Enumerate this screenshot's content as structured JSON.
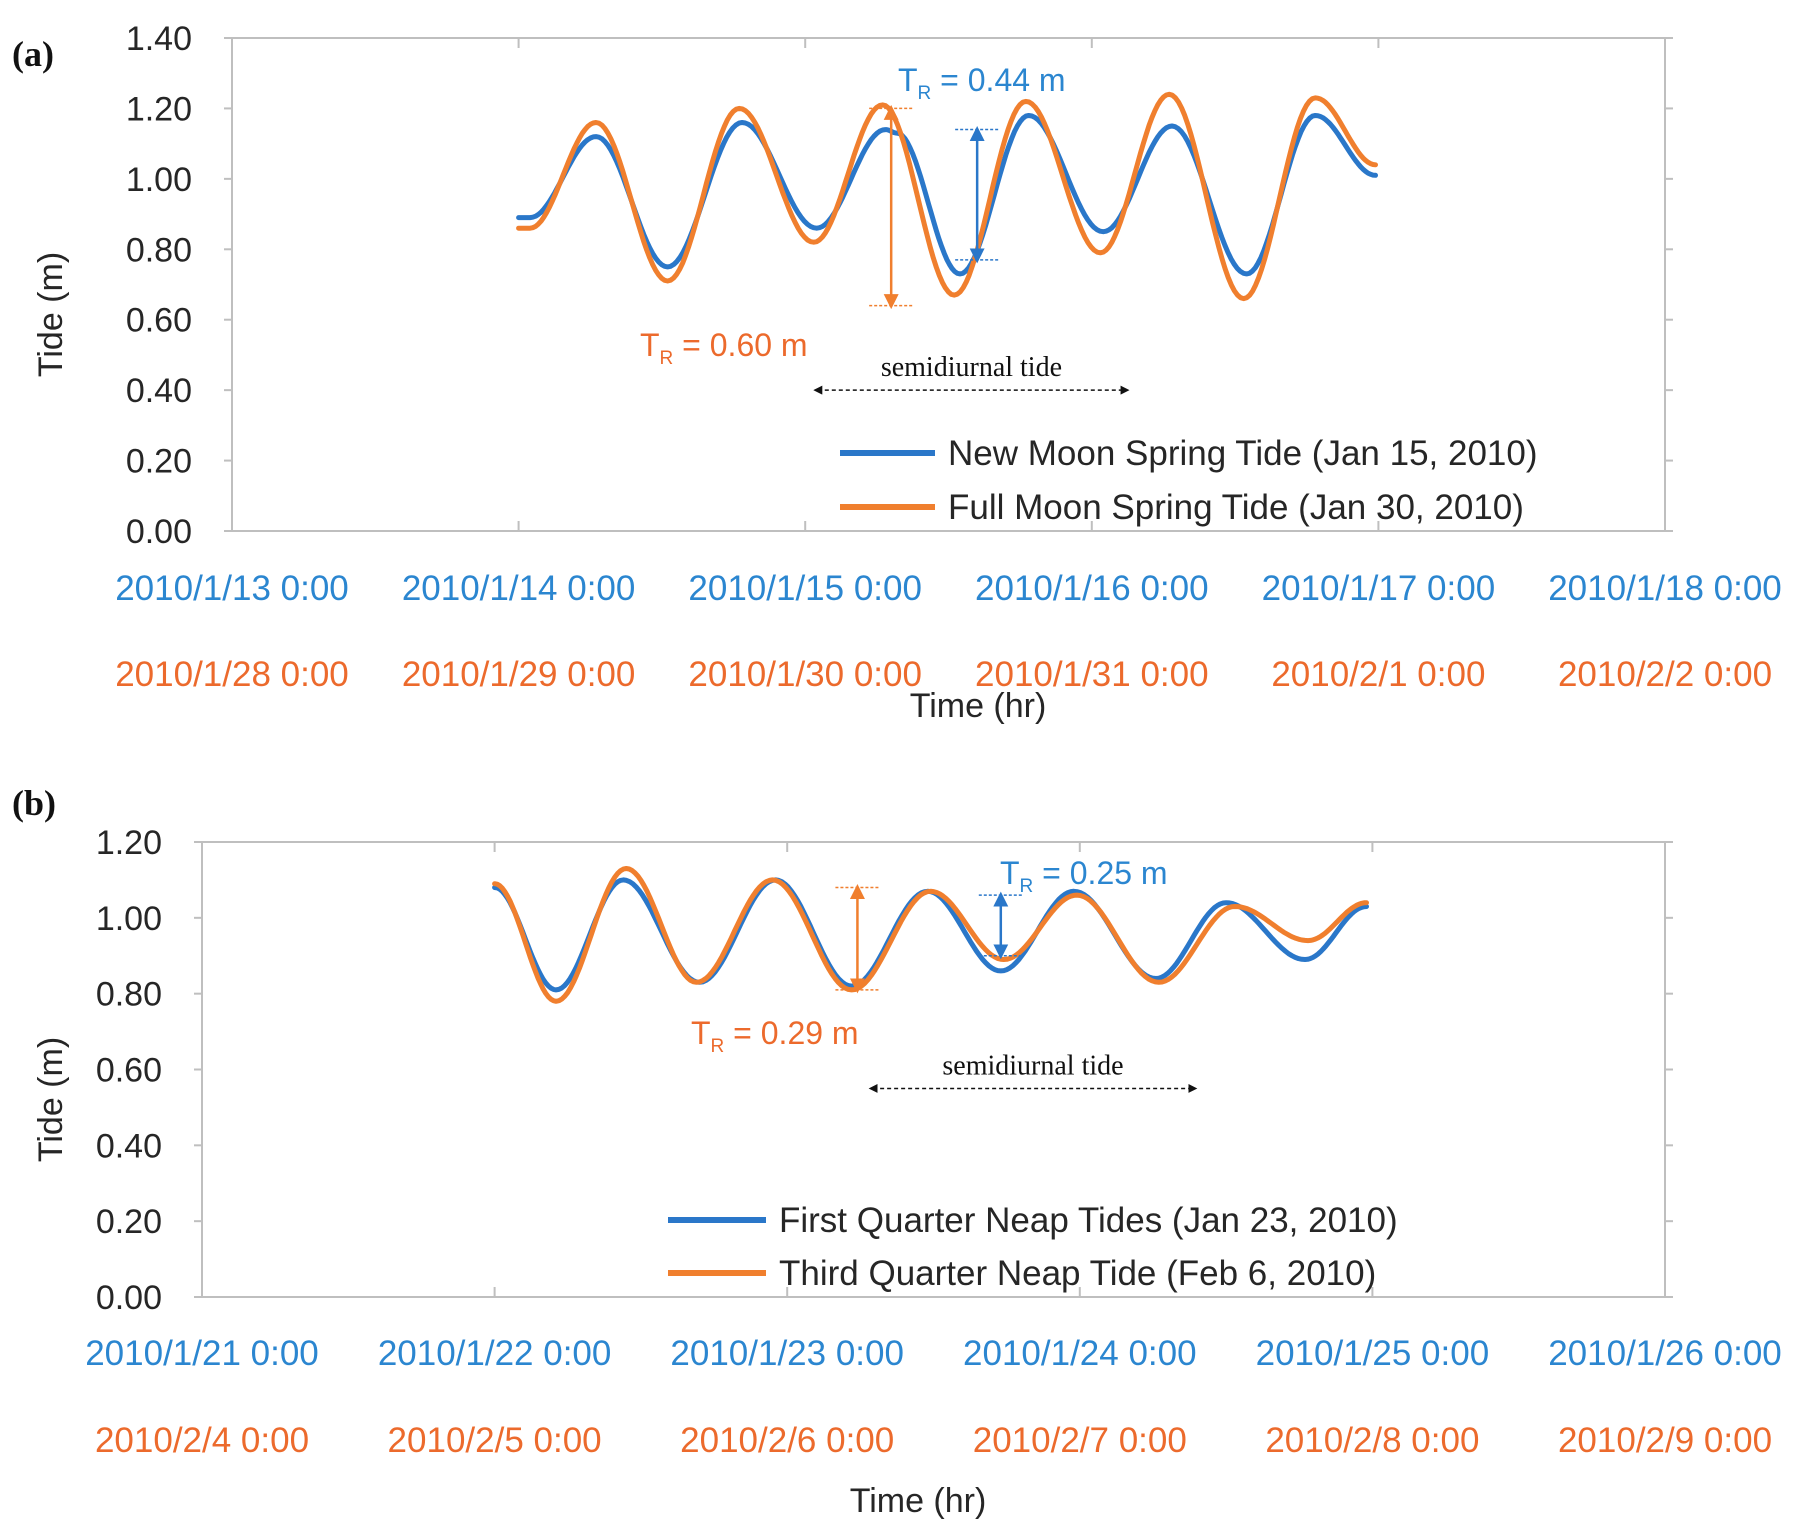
{
  "colors": {
    "blue": "#2a77c9",
    "orange": "#f07f2e",
    "blue_text": "#2b86d0",
    "orange_text": "#ec6a2c",
    "axis": "#bfbfbf"
  },
  "chart_data": [
    {
      "type": "line",
      "panel_label": "(a)",
      "ylabel": "Tide (m)",
      "xlabel": "Time (hr)",
      "ylim": [
        0,
        1.4
      ],
      "yticks": [
        "0.00",
        "0.20",
        "0.40",
        "0.60",
        "0.80",
        "1.00",
        "1.20",
        "1.40"
      ],
      "x_range_days": [
        0,
        5
      ],
      "x_tick_labels_blue": [
        "2010/1/13 0:00",
        "2010/1/14 0:00",
        "2010/1/15 0:00",
        "2010/1/16 0:00",
        "2010/1/17 0:00",
        "2010/1/18 0:00"
      ],
      "x_tick_labels_orange": [
        "2010/1/28 0:00",
        "2010/1/29 0:00",
        "2010/1/30 0:00",
        "2010/1/31 0:00",
        "2010/2/1 0:00",
        "2010/2/2 0:00"
      ],
      "series": [
        {
          "name": "New Moon Spring Tide (Jan 15, 2010)",
          "color": "blue",
          "points": [
            [
              1.0,
              0.89
            ],
            [
              1.04,
              0.89
            ],
            [
              1.27,
              1.12
            ],
            [
              1.52,
              0.75
            ],
            [
              1.78,
              1.16
            ],
            [
              2.04,
              0.86
            ],
            [
              2.28,
              1.14
            ],
            [
              2.32,
              1.13
            ],
            [
              2.54,
              0.73
            ],
            [
              2.78,
              1.18
            ],
            [
              3.04,
              0.85
            ],
            [
              3.28,
              1.15
            ],
            [
              3.54,
              0.73
            ],
            [
              3.78,
              1.18
            ],
            [
              3.99,
              1.01
            ]
          ]
        },
        {
          "name": "Full Moon Spring Tide (Jan 30, 2010)",
          "color": "orange",
          "points": [
            [
              1.0,
              0.86
            ],
            [
              1.04,
              0.86
            ],
            [
              1.27,
              1.16
            ],
            [
              1.52,
              0.71
            ],
            [
              1.77,
              1.2
            ],
            [
              2.03,
              0.82
            ],
            [
              2.27,
              1.21
            ],
            [
              2.52,
              0.67
            ],
            [
              2.77,
              1.22
            ],
            [
              3.03,
              0.79
            ],
            [
              3.27,
              1.24
            ],
            [
              3.53,
              0.66
            ],
            [
              3.78,
              1.23
            ],
            [
              3.99,
              1.04
            ]
          ]
        }
      ],
      "annotations": {
        "tr_blue": {
          "T": "T",
          "sub": "R",
          "text": " = 0.44  m",
          "x": 2.6,
          "y_from": 0.77,
          "y_to": 1.14
        },
        "tr_orange": {
          "T": "T",
          "sub": "R",
          "text": " = 0.60  m",
          "x": 2.3,
          "y_from": 0.64,
          "y_to": 1.2
        },
        "semidiurnal": {
          "text": "semidiurnal tide",
          "x_from": 2.03,
          "x_to": 3.13,
          "y": 0.4
        }
      }
    },
    {
      "type": "line",
      "panel_label": "(b)",
      "ylabel": "Tide (m)",
      "xlabel": "Time (hr)",
      "ylim": [
        0,
        1.2
      ],
      "yticks": [
        "0.00",
        "0.20",
        "0.40",
        "0.60",
        "0.80",
        "1.00",
        "1.20"
      ],
      "x_range_days": [
        0,
        5
      ],
      "x_tick_labels_blue": [
        "2010/1/21 0:00",
        "2010/1/22 0:00",
        "2010/1/23 0:00",
        "2010/1/24 0:00",
        "2010/1/25 0:00",
        "2010/1/26 0:00"
      ],
      "x_tick_labels_orange": [
        "2010/2/4 0:00",
        "2010/2/5 0:00",
        "2010/2/6 0:00",
        "2010/2/7 0:00",
        "2010/2/8 0:00",
        "2010/2/9 0:00"
      ],
      "series": [
        {
          "name": "First Quarter Neap Tides (Jan 23, 2010)",
          "color": "blue",
          "points": [
            [
              1.0,
              1.08
            ],
            [
              1.21,
              0.81
            ],
            [
              1.44,
              1.1
            ],
            [
              1.7,
              0.83
            ],
            [
              1.96,
              1.1
            ],
            [
              2.22,
              0.82
            ],
            [
              2.48,
              1.07
            ],
            [
              2.73,
              0.86
            ],
            [
              2.98,
              1.07
            ],
            [
              3.26,
              0.84
            ],
            [
              3.5,
              1.04
            ],
            [
              3.77,
              0.89
            ],
            [
              3.98,
              1.03
            ]
          ]
        },
        {
          "name": "Third Quarter Neap Tide (Feb 6, 2010)",
          "color": "orange",
          "points": [
            [
              1.0,
              1.09
            ],
            [
              1.21,
              0.78
            ],
            [
              1.45,
              1.13
            ],
            [
              1.69,
              0.83
            ],
            [
              1.95,
              1.1
            ],
            [
              2.22,
              0.81
            ],
            [
              2.49,
              1.07
            ],
            [
              2.74,
              0.89
            ],
            [
              2.99,
              1.06
            ],
            [
              3.27,
              0.83
            ],
            [
              3.53,
              1.03
            ],
            [
              3.78,
              0.94
            ],
            [
              3.98,
              1.04
            ]
          ]
        }
      ],
      "annotations": {
        "tr_blue": {
          "T": "T",
          "sub": "R",
          "text": " = 0.25  m",
          "x": 2.73,
          "y_from": 0.9,
          "y_to": 1.06
        },
        "tr_orange": {
          "T": "T",
          "sub": "R",
          "text": " = 0.29  m",
          "x": 2.24,
          "y_from": 0.81,
          "y_to": 1.08
        },
        "semidiurnal": {
          "text": "semidiurnal tide",
          "x_from": 2.28,
          "x_to": 3.4,
          "y": 0.55
        }
      }
    }
  ]
}
